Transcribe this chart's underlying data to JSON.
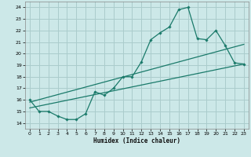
{
  "title": "",
  "xlabel": "Humidex (Indice chaleur)",
  "ylabel": "",
  "background_color": "#cce8e8",
  "grid_color": "#aacccc",
  "line_color": "#1a7a6a",
  "xlim": [
    -0.5,
    23.5
  ],
  "ylim": [
    13.5,
    24.5
  ],
  "yticks": [
    14,
    15,
    16,
    17,
    18,
    19,
    20,
    21,
    22,
    23,
    24
  ],
  "xticks": [
    0,
    1,
    2,
    3,
    4,
    5,
    6,
    7,
    8,
    9,
    10,
    11,
    12,
    13,
    14,
    15,
    16,
    17,
    18,
    19,
    20,
    21,
    22,
    23
  ],
  "line1_x": [
    0,
    1,
    2,
    3,
    4,
    5,
    6,
    7,
    8,
    9,
    10,
    11,
    12,
    13,
    14,
    15,
    16,
    17,
    18,
    19,
    20,
    21,
    22,
    23
  ],
  "line1_y": [
    16,
    15,
    15,
    14.6,
    14.3,
    14.3,
    14.8,
    16.7,
    16.4,
    17.0,
    18.0,
    18.0,
    19.3,
    21.2,
    21.8,
    22.3,
    23.8,
    24.0,
    21.3,
    21.2,
    22.0,
    20.7,
    19.2,
    19.1
  ],
  "line2_x": [
    0,
    23
  ],
  "line2_y": [
    15.3,
    19.1
  ],
  "line3_x": [
    0,
    23
  ],
  "line3_y": [
    15.8,
    20.8
  ]
}
